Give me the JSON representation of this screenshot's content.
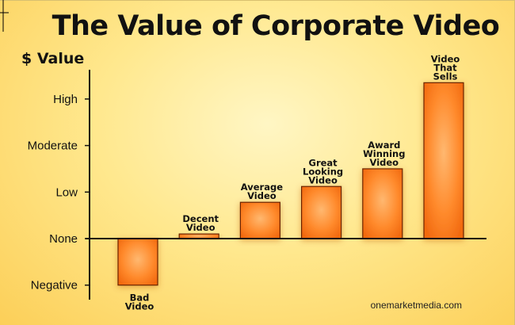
{
  "chart_data": {
    "type": "bar",
    "title": "The Value of Corporate Video",
    "ylabel": "$ Value",
    "xlabel": "",
    "y_ticks": [
      {
        "label": "High",
        "value": 3
      },
      {
        "label": "Moderate",
        "value": 2
      },
      {
        "label": "Low",
        "value": 1
      },
      {
        "label": "None",
        "value": 0
      },
      {
        "label": "Negative",
        "value": -1
      }
    ],
    "ylim": [
      -1.2,
      3.5
    ],
    "categories": [
      [
        "Bad",
        "Video"
      ],
      [
        "Decent",
        "Video"
      ],
      [
        "Average",
        "Video"
      ],
      [
        "Great",
        "Looking",
        "Video"
      ],
      [
        "Award",
        "Winning",
        "Video"
      ],
      [
        "Video",
        "That",
        "Sells"
      ]
    ],
    "values": [
      -1.0,
      0.1,
      0.78,
      1.12,
      1.5,
      3.35
    ],
    "bar_color": "#ff7418",
    "bar_highlight": "#ffb870",
    "bar_outline": "#6a2400",
    "grid": false,
    "source": "onemarketmedia.com"
  }
}
